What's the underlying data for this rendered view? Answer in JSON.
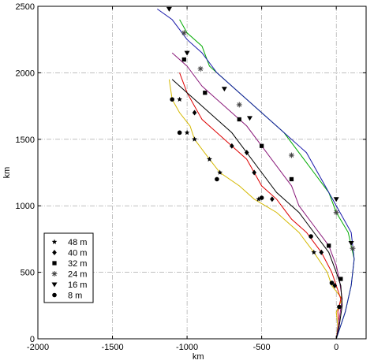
{
  "chart_data": {
    "type": "line",
    "xlabel": "km",
    "ylabel": "km",
    "xlim": [
      -2000,
      200
    ],
    "ylim": [
      0,
      2500
    ],
    "x_ticks": [
      -2000,
      -1500,
      -1000,
      -500,
      0
    ],
    "y_ticks": [
      0,
      500,
      1000,
      1500,
      2000,
      2500
    ],
    "grid": "dash-dot",
    "legend_position": "lower-left",
    "series": [
      {
        "name": "48 m",
        "color": "#d4b800",
        "marker": "star",
        "points": [
          [
            0,
            0
          ],
          [
            10,
            100
          ],
          [
            0,
            200
          ],
          [
            40,
            300
          ],
          [
            -30,
            400
          ],
          [
            -60,
            500
          ],
          [
            -150,
            650
          ],
          [
            -250,
            800
          ],
          [
            -400,
            950
          ],
          [
            -550,
            1050
          ],
          [
            -650,
            1150
          ],
          [
            -780,
            1250
          ],
          [
            -850,
            1350
          ],
          [
            -950,
            1500
          ],
          [
            -980,
            1600
          ],
          [
            -1050,
            1700
          ],
          [
            -1100,
            1800
          ],
          [
            -1120,
            1950
          ]
        ],
        "marker_points": [
          [
            -150,
            650
          ],
          [
            -520,
            1050
          ],
          [
            -780,
            1250
          ],
          [
            -850,
            1350
          ],
          [
            -950,
            1500
          ],
          [
            -1000,
            1550
          ],
          [
            -1050,
            1800
          ]
        ]
      },
      {
        "name": "40 m",
        "color": "#dd0000",
        "marker": "diamond",
        "points": [
          [
            0,
            0
          ],
          [
            20,
            100
          ],
          [
            10,
            200
          ],
          [
            30,
            300
          ],
          [
            0,
            400
          ],
          [
            -30,
            500
          ],
          [
            -100,
            650
          ],
          [
            -200,
            800
          ],
          [
            -300,
            900
          ],
          [
            -400,
            1050
          ],
          [
            -500,
            1150
          ],
          [
            -550,
            1250
          ],
          [
            -600,
            1350
          ],
          [
            -700,
            1450
          ],
          [
            -800,
            1550
          ],
          [
            -900,
            1650
          ],
          [
            -950,
            1750
          ],
          [
            -1000,
            1850
          ],
          [
            -1050,
            2000
          ]
        ],
        "marker_points": [
          [
            -10,
            400
          ],
          [
            -100,
            650
          ],
          [
            -430,
            1050
          ],
          [
            -550,
            1250
          ],
          [
            -600,
            1400
          ],
          [
            -700,
            1450
          ],
          [
            -950,
            1700
          ]
        ]
      },
      {
        "name": "32 m",
        "color": "#8a1a7a",
        "marker": "square",
        "points": [
          [
            0,
            0
          ],
          [
            20,
            150
          ],
          [
            40,
            300
          ],
          [
            20,
            450
          ],
          [
            0,
            550
          ],
          [
            -50,
            700
          ],
          [
            -150,
            850
          ],
          [
            -250,
            1000
          ],
          [
            -300,
            1150
          ],
          [
            -400,
            1300
          ],
          [
            -500,
            1450
          ],
          [
            -600,
            1600
          ],
          [
            -700,
            1700
          ],
          [
            -800,
            1800
          ],
          [
            -900,
            1900
          ],
          [
            -1000,
            2050
          ],
          [
            -1100,
            2150
          ]
        ],
        "marker_points": [
          [
            30,
            450
          ],
          [
            -50,
            700
          ],
          [
            -300,
            1200
          ],
          [
            -500,
            1450
          ],
          [
            -650,
            1650
          ],
          [
            -880,
            1850
          ],
          [
            -1020,
            2100
          ]
        ]
      },
      {
        "name": "24 m",
        "color": "#00aa00",
        "marker": "asterisk",
        "points": [
          [
            0,
            0
          ],
          [
            60,
            200
          ],
          [
            100,
            400
          ],
          [
            120,
            600
          ],
          [
            80,
            800
          ],
          [
            0,
            950
          ],
          [
            -50,
            1100
          ],
          [
            -150,
            1250
          ],
          [
            -250,
            1400
          ],
          [
            -350,
            1550
          ],
          [
            -450,
            1650
          ],
          [
            -550,
            1750
          ],
          [
            -650,
            1850
          ],
          [
            -750,
            1950
          ],
          [
            -850,
            2050
          ],
          [
            -900,
            2200
          ],
          [
            -1000,
            2300
          ],
          [
            -1050,
            2400
          ]
        ],
        "marker_points": [
          [
            110,
            680
          ],
          [
            0,
            950
          ],
          [
            -300,
            1380
          ],
          [
            -650,
            1760
          ],
          [
            -910,
            2030
          ],
          [
            -1020,
            2300
          ]
        ]
      },
      {
        "name": "16 m",
        "color": "#1a1aaa",
        "marker": "triangle",
        "points": [
          [
            0,
            0
          ],
          [
            60,
            200
          ],
          [
            100,
            400
          ],
          [
            120,
            600
          ],
          [
            100,
            800
          ],
          [
            0,
            1000
          ],
          [
            -100,
            1200
          ],
          [
            -200,
            1400
          ],
          [
            -350,
            1550
          ],
          [
            -500,
            1700
          ],
          [
            -650,
            1850
          ],
          [
            -800,
            2000
          ],
          [
            -900,
            2150
          ],
          [
            -1000,
            2250
          ],
          [
            -1100,
            2400
          ],
          [
            -1200,
            2480
          ]
        ],
        "marker_points": [
          [
            100,
            720
          ],
          [
            0,
            1050
          ],
          [
            -580,
            1660
          ],
          [
            -750,
            1880
          ],
          [
            -1000,
            2150
          ],
          [
            -1120,
            2480
          ]
        ]
      },
      {
        "name": "8 m",
        "color": "#000000",
        "marker": "circle",
        "points": [
          [
            0,
            0
          ],
          [
            20,
            100
          ],
          [
            40,
            250
          ],
          [
            30,
            400
          ],
          [
            0,
            500
          ],
          [
            -50,
            650
          ],
          [
            -150,
            800
          ],
          [
            -250,
            950
          ],
          [
            -400,
            1100
          ],
          [
            -500,
            1250
          ],
          [
            -600,
            1400
          ],
          [
            -700,
            1550
          ],
          [
            -800,
            1650
          ],
          [
            -900,
            1750
          ],
          [
            -1000,
            1850
          ],
          [
            -1100,
            1950
          ]
        ],
        "marker_points": [
          [
            20,
            240
          ],
          [
            -30,
            420
          ],
          [
            -170,
            770
          ],
          [
            -500,
            1060
          ],
          [
            -800,
            1200
          ],
          [
            -1050,
            1550
          ],
          [
            -1100,
            1800
          ]
        ]
      }
    ]
  }
}
